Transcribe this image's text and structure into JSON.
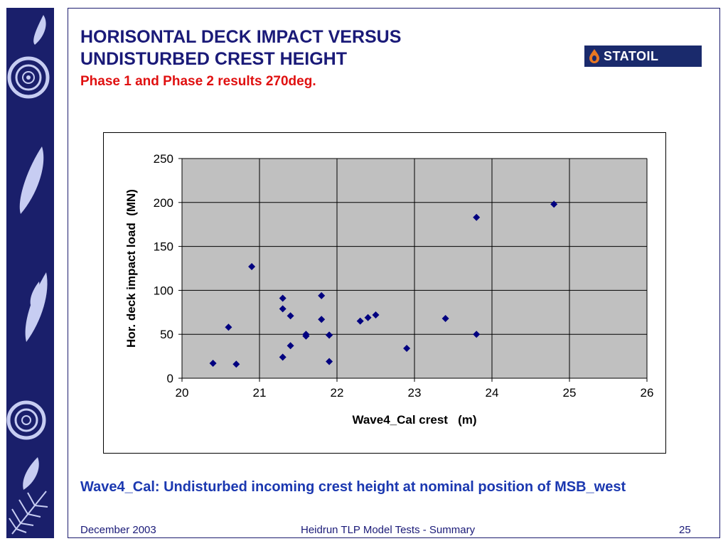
{
  "header": {
    "title_line_1": "HORISONTAL DECK IMPACT VERSUS",
    "title_line_2": "UNDISTURBED CREST HEIGHT",
    "subtitle": "Phase 1 and Phase 2 results 270deg.",
    "title_color": "#1a1a78",
    "subtitle_color": "#e01010"
  },
  "logo": {
    "text": "STATOIL",
    "icon": "statoil-drop-icon",
    "background": "#1a2a6c"
  },
  "side_strip": {
    "background": "#1a1f6b",
    "motif_color": "#c7cdf2",
    "icons": [
      "leaf-icon",
      "ammonite-icon",
      "leaf-icon",
      "leaf-icon",
      "leaf-icon",
      "ammonite-icon",
      "leaf-icon",
      "fern-icon"
    ]
  },
  "chart_data": {
    "type": "scatter",
    "xlabel": "Wave4_Cal crest   (m)",
    "ylabel": "Hor. deck impact load  (MN)",
    "xlim": [
      20,
      26
    ],
    "ylim": [
      0,
      250
    ],
    "x_ticks": [
      20,
      21,
      22,
      23,
      24,
      25,
      26
    ],
    "y_ticks": [
      0,
      50,
      100,
      150,
      200,
      250
    ],
    "grid": true,
    "legend": false,
    "marker": "diamond",
    "marker_color": "#000080",
    "plot_background": "#c0c0c0",
    "x": [
      20.4,
      20.6,
      20.7,
      20.9,
      21.3,
      21.3,
      21.3,
      21.4,
      21.4,
      21.6,
      21.6,
      21.8,
      21.8,
      21.9,
      21.9,
      22.3,
      22.4,
      22.5,
      22.9,
      23.4,
      23.8,
      23.8,
      24.8,
      21.6,
      21.9
    ],
    "y": [
      17,
      58,
      16,
      127,
      91,
      79,
      24,
      71,
      37,
      50,
      48,
      94,
      67,
      49,
      19,
      65,
      69,
      72,
      34,
      68,
      50,
      183,
      198,
      48,
      49
    ]
  },
  "caption": "Wave4_Cal: Undisturbed incoming crest height at nominal position of MSB_west",
  "caption_color": "#1b38b0",
  "footer": {
    "date": "December 2003",
    "title": "Heidrun TLP Model Tests - Summary",
    "page": "25"
  }
}
